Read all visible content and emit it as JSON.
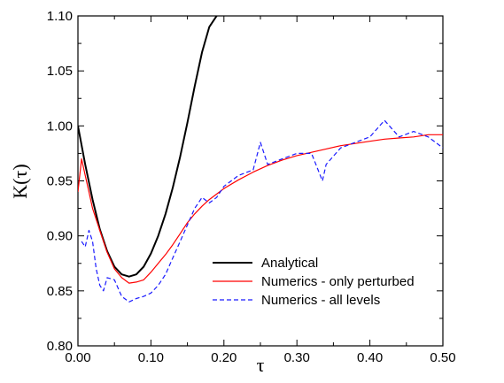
{
  "chart_data": {
    "type": "line",
    "title": "",
    "xlabel": "τ",
    "ylabel": "K(τ)",
    "xlim": [
      0.0,
      0.5
    ],
    "ylim": [
      0.8,
      1.1
    ],
    "xticks": [
      0.0,
      0.1,
      0.2,
      0.3,
      0.4,
      0.5
    ],
    "yticks": [
      0.8,
      0.85,
      0.9,
      0.95,
      1.0,
      1.05,
      1.1
    ],
    "xtick_labels": [
      "0.00",
      "0.10",
      "0.20",
      "0.30",
      "0.40",
      "0.50"
    ],
    "ytick_labels": [
      "0.80",
      "0.85",
      "0.90",
      "0.95",
      "1.00",
      "1.05",
      "1.10"
    ],
    "grid": false,
    "legend_position": "lower-right",
    "series": [
      {
        "name": "Analytical",
        "color": "#000000",
        "style": "solid",
        "x": [
          0.0,
          0.01,
          0.02,
          0.03,
          0.04,
          0.05,
          0.06,
          0.07,
          0.08,
          0.09,
          0.1,
          0.11,
          0.12,
          0.13,
          0.14,
          0.15,
          0.16,
          0.17,
          0.18,
          0.19
        ],
        "y": [
          1.0,
          0.965,
          0.933,
          0.906,
          0.886,
          0.872,
          0.865,
          0.863,
          0.865,
          0.872,
          0.884,
          0.9,
          0.92,
          0.944,
          0.972,
          1.003,
          1.036,
          1.067,
          1.09,
          1.1
        ]
      },
      {
        "name": "Numerics - only perturbed",
        "color": "#ff0000",
        "style": "solid",
        "x": [
          0.0,
          0.005,
          0.01,
          0.015,
          0.02,
          0.03,
          0.04,
          0.05,
          0.06,
          0.07,
          0.08,
          0.09,
          0.1,
          0.11,
          0.12,
          0.13,
          0.14,
          0.15,
          0.16,
          0.17,
          0.18,
          0.19,
          0.2,
          0.22,
          0.24,
          0.26,
          0.28,
          0.3,
          0.32,
          0.34,
          0.36,
          0.38,
          0.4,
          0.42,
          0.44,
          0.46,
          0.48,
          0.5
        ],
        "y": [
          0.94,
          0.97,
          0.955,
          0.94,
          0.925,
          0.905,
          0.885,
          0.87,
          0.862,
          0.857,
          0.858,
          0.86,
          0.867,
          0.875,
          0.883,
          0.892,
          0.902,
          0.912,
          0.92,
          0.927,
          0.933,
          0.938,
          0.943,
          0.951,
          0.958,
          0.964,
          0.969,
          0.973,
          0.976,
          0.979,
          0.982,
          0.984,
          0.986,
          0.988,
          0.989,
          0.99,
          0.992,
          0.992
        ]
      },
      {
        "name": "Numerics - all levels",
        "color": "#1a1aff",
        "style": "dashed",
        "x": [
          0.005,
          0.01,
          0.015,
          0.02,
          0.025,
          0.03,
          0.035,
          0.04,
          0.05,
          0.06,
          0.07,
          0.08,
          0.09,
          0.1,
          0.11,
          0.12,
          0.13,
          0.14,
          0.15,
          0.16,
          0.17,
          0.18,
          0.19,
          0.2,
          0.22,
          0.24,
          0.25,
          0.26,
          0.28,
          0.3,
          0.32,
          0.335,
          0.34,
          0.36,
          0.38,
          0.4,
          0.42,
          0.44,
          0.46,
          0.48,
          0.5
        ],
        "y": [
          0.895,
          0.89,
          0.905,
          0.895,
          0.87,
          0.855,
          0.85,
          0.862,
          0.86,
          0.845,
          0.84,
          0.843,
          0.845,
          0.848,
          0.855,
          0.865,
          0.88,
          0.895,
          0.91,
          0.925,
          0.935,
          0.93,
          0.935,
          0.945,
          0.955,
          0.96,
          0.985,
          0.965,
          0.97,
          0.975,
          0.975,
          0.95,
          0.965,
          0.98,
          0.985,
          0.99,
          1.005,
          0.99,
          0.995,
          0.99,
          0.98
        ]
      }
    ]
  }
}
